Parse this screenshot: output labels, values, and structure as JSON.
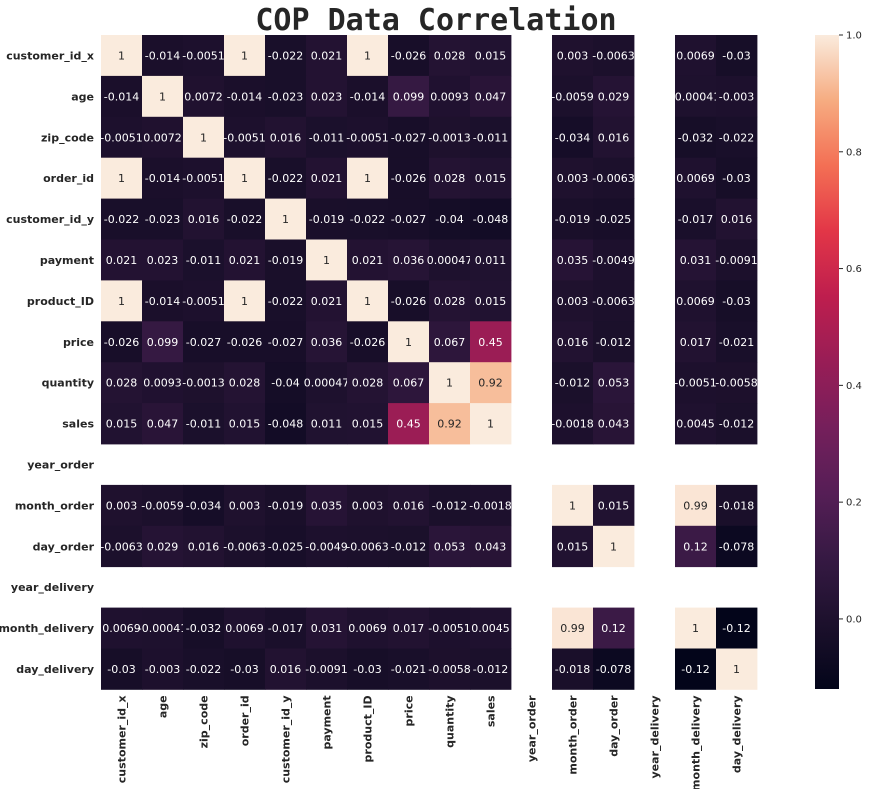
{
  "chart_data": {
    "type": "heatmap",
    "title": "COP Data Correlation",
    "labels": [
      "customer_id_x",
      "age",
      "zip_code",
      "order_id",
      "customer_id_y",
      "payment",
      "product_ID",
      "price",
      "quantity",
      "sales",
      "year_order",
      "month_order",
      "day_order",
      "year_delivery",
      "month_delivery",
      "day_delivery"
    ],
    "matrix": [
      [
        1,
        -0.014,
        -0.0051,
        1,
        -0.022,
        0.021,
        1,
        -0.026,
        0.028,
        0.015,
        null,
        0.003,
        -0.0063,
        null,
        0.0069,
        -0.03
      ],
      [
        -0.014,
        1,
        0.0072,
        -0.014,
        -0.023,
        0.023,
        -0.014,
        0.099,
        0.0093,
        0.047,
        null,
        -0.0059,
        0.029,
        null,
        -0.00041,
        -0.003
      ],
      [
        -0.0051,
        0.0072,
        1,
        -0.0051,
        0.016,
        -0.011,
        -0.0051,
        -0.027,
        -0.0013,
        -0.011,
        null,
        -0.034,
        0.016,
        null,
        -0.032,
        -0.022
      ],
      [
        1,
        -0.014,
        -0.0051,
        1,
        -0.022,
        0.021,
        1,
        -0.026,
        0.028,
        0.015,
        null,
        0.003,
        -0.0063,
        null,
        0.0069,
        -0.03
      ],
      [
        -0.022,
        -0.023,
        0.016,
        -0.022,
        1,
        -0.019,
        -0.022,
        -0.027,
        -0.04,
        -0.048,
        null,
        -0.019,
        -0.025,
        null,
        -0.017,
        0.016
      ],
      [
        0.021,
        0.023,
        -0.011,
        0.021,
        -0.019,
        1,
        0.021,
        0.036,
        0.00047,
        0.011,
        null,
        0.035,
        -0.0049,
        null,
        0.031,
        -0.0091
      ],
      [
        1,
        -0.014,
        -0.0051,
        1,
        -0.022,
        0.021,
        1,
        -0.026,
        0.028,
        0.015,
        null,
        0.003,
        -0.0063,
        null,
        0.0069,
        -0.03
      ],
      [
        -0.026,
        0.099,
        -0.027,
        -0.026,
        -0.027,
        0.036,
        -0.026,
        1,
        0.067,
        0.45,
        null,
        0.016,
        -0.012,
        null,
        0.017,
        -0.021
      ],
      [
        0.028,
        0.0093,
        -0.0013,
        0.028,
        -0.04,
        0.00047,
        0.028,
        0.067,
        1,
        0.92,
        null,
        -0.012,
        0.053,
        null,
        -0.0051,
        -0.0058
      ],
      [
        0.015,
        0.047,
        -0.011,
        0.015,
        -0.048,
        0.011,
        0.015,
        0.45,
        0.92,
        1,
        null,
        -0.0018,
        0.043,
        null,
        0.0045,
        -0.012
      ],
      [
        null,
        null,
        null,
        null,
        null,
        null,
        null,
        null,
        null,
        null,
        null,
        null,
        null,
        null,
        null,
        null
      ],
      [
        0.003,
        -0.0059,
        -0.034,
        0.003,
        -0.019,
        0.035,
        0.003,
        0.016,
        -0.012,
        -0.0018,
        null,
        1,
        0.015,
        null,
        0.99,
        -0.018
      ],
      [
        -0.0063,
        0.029,
        0.016,
        -0.0063,
        -0.025,
        -0.0049,
        -0.0063,
        -0.012,
        0.053,
        0.043,
        null,
        0.015,
        1,
        null,
        0.12,
        -0.078
      ],
      [
        null,
        null,
        null,
        null,
        null,
        null,
        null,
        null,
        null,
        null,
        null,
        null,
        null,
        null,
        null,
        null
      ],
      [
        0.0069,
        -0.00041,
        -0.032,
        0.0069,
        -0.017,
        0.031,
        0.0069,
        0.017,
        -0.0051,
        0.0045,
        null,
        0.99,
        0.12,
        null,
        1,
        -0.12
      ],
      [
        -0.03,
        -0.003,
        -0.022,
        -0.03,
        0.016,
        -0.0091,
        -0.03,
        -0.021,
        -0.0058,
        -0.012,
        null,
        -0.018,
        -0.078,
        null,
        -0.12,
        1
      ]
    ],
    "colorbar": {
      "vmin": -0.12,
      "vmax": 1,
      "ticks": [
        0.0,
        0.2,
        0.4,
        0.6,
        0.8,
        1.0
      ],
      "tick_labels": [
        "0.0",
        "0.2",
        "0.4",
        "0.6",
        "0.8",
        "1.0"
      ]
    },
    "colormap": "rocket",
    "grid": false
  }
}
